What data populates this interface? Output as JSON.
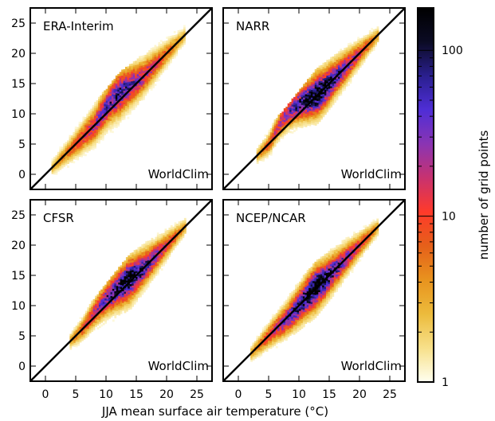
{
  "chart_data": {
    "type": "heatmap",
    "xlabel": "JJA mean surface air temperature (°C)",
    "colorbar": {
      "label": "number of grid points",
      "scale": "log",
      "range": [
        1,
        180
      ],
      "ticks": [
        {
          "value": 1,
          "label": "1"
        },
        {
          "value": 10,
          "label": "10"
        },
        {
          "value": 100,
          "label": "100"
        }
      ],
      "colormap": [
        "#fffff0",
        "#f7e08a",
        "#ecbb3c",
        "#e8931e",
        "#e5601a",
        "#ff3a2a",
        "#c8326f",
        "#8a34b3",
        "#4f2ed6",
        "#2a1f8f",
        "#0b0b24",
        "#000000"
      ]
    },
    "xlim": [
      -2.5,
      27.5
    ],
    "ylim": [
      -2.5,
      27.5
    ],
    "xticks": [
      0,
      5,
      10,
      15,
      20,
      25
    ],
    "yticks": [
      0,
      5,
      10,
      15,
      20,
      25
    ],
    "panels": [
      {
        "title": "ERA-Interim",
        "corner_label": "WorldClim",
        "identity_line": true,
        "x_range": [
          1,
          23
        ],
        "density_peak": 60,
        "bulge": [
          [
            8,
            11
          ],
          [
            16,
            17
          ]
        ]
      },
      {
        "title": "NARR",
        "corner_label": "WorldClim",
        "identity_line": true,
        "x_range": [
          3,
          23
        ],
        "density_peak": 180,
        "bulge": [
          [
            5,
            11
          ],
          [
            15,
            14
          ]
        ]
      },
      {
        "title": "CFSR",
        "corner_label": "WorldClim",
        "identity_line": true,
        "x_range": [
          4,
          23
        ],
        "density_peak": 150,
        "bulge": [
          [
            6,
            9
          ],
          [
            17,
            17
          ]
        ]
      },
      {
        "title": "NCEP/NCAR",
        "corner_label": "WorldClim",
        "identity_line": true,
        "x_range": [
          2,
          23
        ],
        "density_peak": 180,
        "bulge": [
          [
            6,
            5
          ],
          [
            14,
            15
          ]
        ]
      }
    ]
  }
}
